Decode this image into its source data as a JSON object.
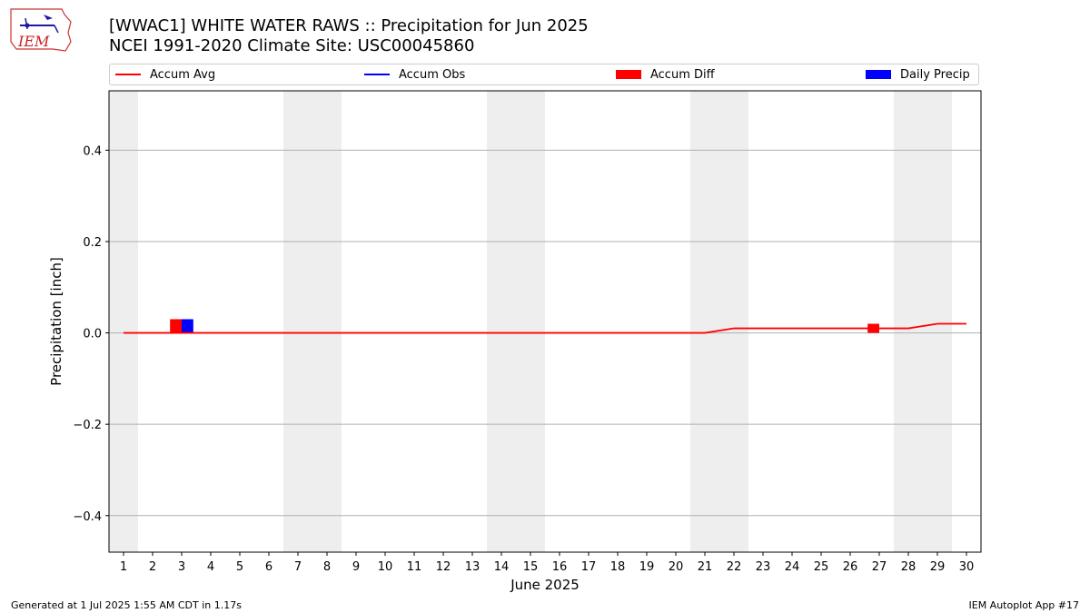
{
  "header": {
    "logo_text": "IEM",
    "title_line1": "[WWAC1] WHITE WATER RAWS :: Precipitation for Jun 2025",
    "title_line2": "NCEI 1991-2020 Climate Site: USC00045860"
  },
  "legend": {
    "placement": "top",
    "items": [
      {
        "label": "Accum Avg",
        "kind": "line",
        "color": "#ff0000"
      },
      {
        "label": "Accum Obs",
        "kind": "line",
        "color": "#0000ff"
      },
      {
        "label": "Accum Diff",
        "kind": "patch",
        "color": "#ff0000"
      },
      {
        "label": "Daily Precip",
        "kind": "patch",
        "color": "#0000ff"
      }
    ]
  },
  "footer": {
    "left": "Generated at 1 Jul 2025 1:55 AM CDT in 1.17s",
    "right": "IEM Autoplot App #17"
  },
  "chart_data": {
    "type": "line",
    "xlabel": "June 2025",
    "ylabel": "Precipitation [inch]",
    "xlim": [
      0.5,
      30.5
    ],
    "ylim": [
      -0.48,
      0.53
    ],
    "x_ticks": [
      1,
      2,
      3,
      4,
      5,
      6,
      7,
      8,
      9,
      10,
      11,
      12,
      13,
      14,
      15,
      16,
      17,
      18,
      19,
      20,
      21,
      22,
      23,
      24,
      25,
      26,
      27,
      28,
      29,
      30
    ],
    "y_ticks": [
      -0.4,
      -0.2,
      0.0,
      0.2,
      0.4
    ],
    "y_tick_labels": [
      "−0.4",
      "−0.2",
      "0.0",
      "0.2",
      "0.4"
    ],
    "grid": "horizontal",
    "weekend_days": [
      1,
      7,
      8,
      14,
      15,
      21,
      22,
      28,
      29
    ],
    "accum_avg": {
      "name": "Accum Avg",
      "color": "#ff0000",
      "x": [
        1,
        2,
        3,
        4,
        5,
        6,
        7,
        8,
        9,
        10,
        11,
        12,
        13,
        14,
        15,
        16,
        17,
        18,
        19,
        20,
        21,
        22,
        23,
        24,
        25,
        26,
        27,
        28,
        29,
        30
      ],
      "values": [
        0,
        0,
        0,
        0,
        0,
        0,
        0,
        0,
        0,
        0,
        0,
        0,
        0,
        0,
        0,
        0,
        0,
        0,
        0,
        0,
        0,
        0.01,
        0.01,
        0.01,
        0.01,
        0.01,
        0.01,
        0.01,
        0.02,
        0.02
      ]
    },
    "accum_diff": {
      "name": "Accum Diff",
      "color": "#ff0000",
      "x": [
        3,
        27
      ],
      "values": [
        0.03,
        0.02
      ],
      "bottom": [
        0,
        0
      ]
    },
    "daily_precip": {
      "name": "Daily Precip",
      "color": "#0000ff",
      "x": [
        3
      ],
      "values": [
        0.03
      ]
    }
  }
}
